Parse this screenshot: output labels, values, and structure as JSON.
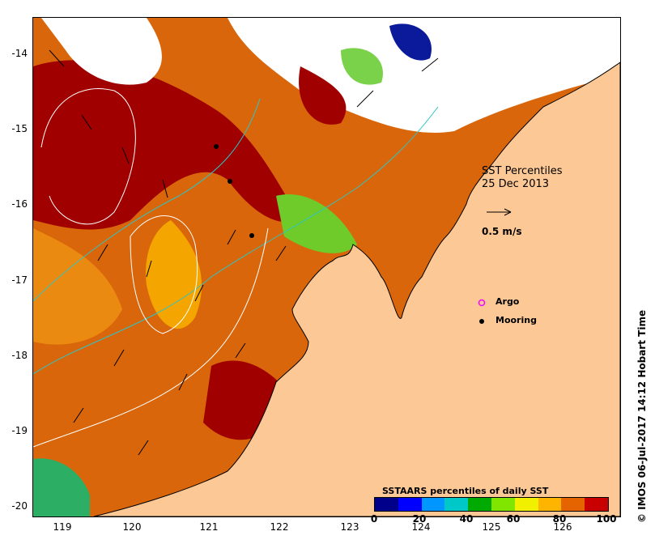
{
  "map": {
    "title_line1": "SST Percentiles",
    "title_line2": "25 Dec 2013",
    "scale_label": "0.5 m/s",
    "legend": [
      {
        "label": "Argo",
        "color": "#ff00ff"
      },
      {
        "label": "Mooring",
        "color": "#000000"
      }
    ],
    "y_ticks": [
      "-14",
      "-15",
      "-16",
      "-17",
      "-18",
      "-19",
      "-20"
    ],
    "x_ticks": [
      "119",
      "120",
      "121",
      "122",
      "123",
      "124",
      "125",
      "126"
    ],
    "land_color": "#fcc896"
  },
  "colorbar": {
    "title": "SSTAARS percentiles of daily SST",
    "colors": [
      "#00008b",
      "#0000ff",
      "#0096ff",
      "#00c8c8",
      "#00aa00",
      "#80e600",
      "#f0f000",
      "#ffb400",
      "#e66400",
      "#c80000"
    ],
    "ticks": [
      "0",
      "20",
      "40",
      "60",
      "80",
      "100"
    ]
  },
  "credit": "© IMOS 06-Jul-2017 14:12 Hobart Time"
}
